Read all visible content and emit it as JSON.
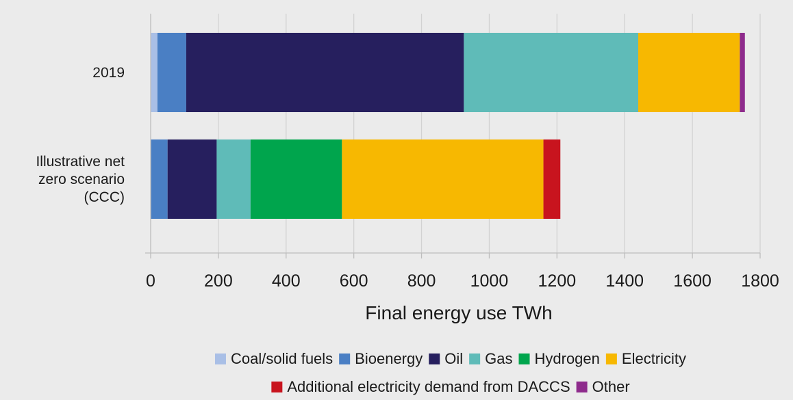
{
  "chart_data": {
    "type": "bar",
    "orientation": "horizontal",
    "stacked": true,
    "categories": [
      "2019",
      "Illustrative net zero scenario (CCC)"
    ],
    "category_label_lines": [
      [
        "2019"
      ],
      [
        "Illustrative net",
        "zero scenario",
        "(CCC)"
      ]
    ],
    "series": [
      {
        "name": "Coal/solid fuels",
        "color": "#a9bfe6",
        "values": [
          20,
          0
        ]
      },
      {
        "name": "Bioenergy",
        "color": "#4a7fc4",
        "values": [
          85,
          50
        ]
      },
      {
        "name": "Oil",
        "color": "#261f5e",
        "values": [
          820,
          145
        ]
      },
      {
        "name": "Gas",
        "color": "#5fbbb8",
        "values": [
          515,
          100
        ]
      },
      {
        "name": "Hydrogen",
        "color": "#00a54d",
        "values": [
          0,
          270
        ]
      },
      {
        "name": "Electricity",
        "color": "#f7b801",
        "values": [
          300,
          595
        ]
      },
      {
        "name": "Additional electricity demand from DACCS",
        "color": "#c8141e",
        "values": [
          0,
          50
        ]
      },
      {
        "name": "Other",
        "color": "#8e2b8c",
        "values": [
          15,
          0
        ]
      }
    ],
    "xlabel": "Final energy use TWh",
    "xlim": [
      0,
      1800
    ],
    "xticks": [
      0,
      200,
      400,
      600,
      800,
      1000,
      1200,
      1400,
      1600,
      1800
    ],
    "grid": "vertical",
    "legend": {
      "position": "bottom",
      "rows": [
        [
          "Coal/solid fuels",
          "Bioenergy",
          "Oil",
          "Gas",
          "Hydrogen",
          "Electricity"
        ],
        [
          "Additional electricity demand from DACCS",
          "Other"
        ]
      ]
    }
  }
}
